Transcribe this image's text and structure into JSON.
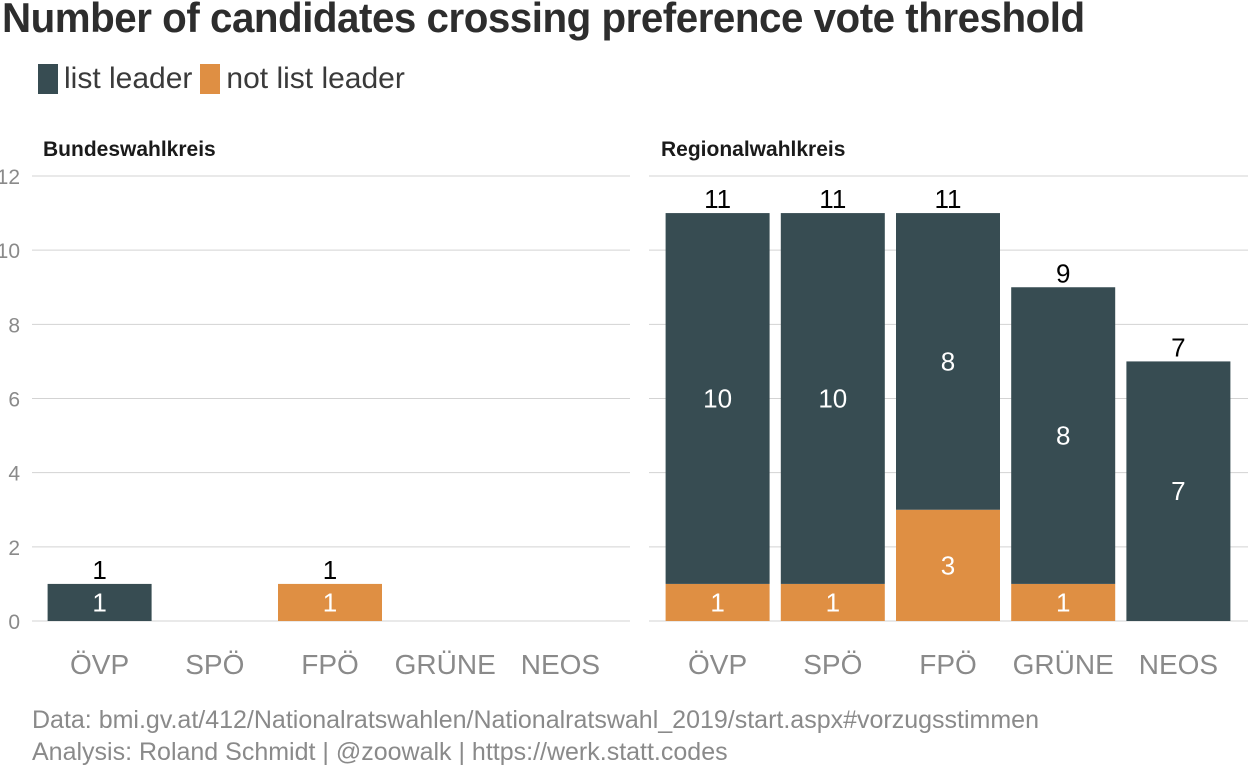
{
  "title": "Number of candidates crossing preference vote threshold",
  "colors": {
    "list_leader": "#374c52",
    "not_list_leader": "#df8f43",
    "grid": "#d3d3d3",
    "axis_text": "#8a8a8a"
  },
  "legend": [
    {
      "label": "list leader",
      "color": "#374c52"
    },
    {
      "label": "not list leader",
      "color": "#df8f43"
    }
  ],
  "chart_data": [
    {
      "type": "bar",
      "stacked": true,
      "title": "Bundeswahlkreis",
      "categories": [
        "ÖVP",
        "SPÖ",
        "FPÖ",
        "GRÜNE",
        "NEOS"
      ],
      "series": [
        {
          "name": "not list leader",
          "values": [
            0,
            0,
            1,
            0,
            0
          ]
        },
        {
          "name": "list leader",
          "values": [
            1,
            0,
            0,
            0,
            0
          ]
        }
      ],
      "totals": [
        1,
        null,
        1,
        null,
        null
      ],
      "ylim": [
        0,
        12
      ],
      "yticks": [
        0,
        2,
        4,
        6,
        8,
        10,
        12
      ],
      "grid": true,
      "legend_position": "top-left"
    },
    {
      "type": "bar",
      "stacked": true,
      "title": "Regionalwahlkreis",
      "categories": [
        "ÖVP",
        "SPÖ",
        "FPÖ",
        "GRÜNE",
        "NEOS"
      ],
      "series": [
        {
          "name": "not list leader",
          "values": [
            1,
            1,
            3,
            1,
            0
          ]
        },
        {
          "name": "list leader",
          "values": [
            10,
            10,
            8,
            8,
            7
          ]
        }
      ],
      "totals": [
        11,
        11,
        11,
        9,
        7
      ],
      "ylim": [
        0,
        12
      ],
      "yticks": [
        0,
        2,
        4,
        6,
        8,
        10,
        12
      ],
      "grid": true,
      "legend_position": "top-left"
    }
  ],
  "caption": {
    "line1": "Data: bmi.gv.at/412/Nationalratswahlen/Nationalratswahl_2019/start.aspx#vorzugsstimmen",
    "line2": "Analysis: Roland Schmidt | @zoowalk | https://werk.statt.codes"
  }
}
